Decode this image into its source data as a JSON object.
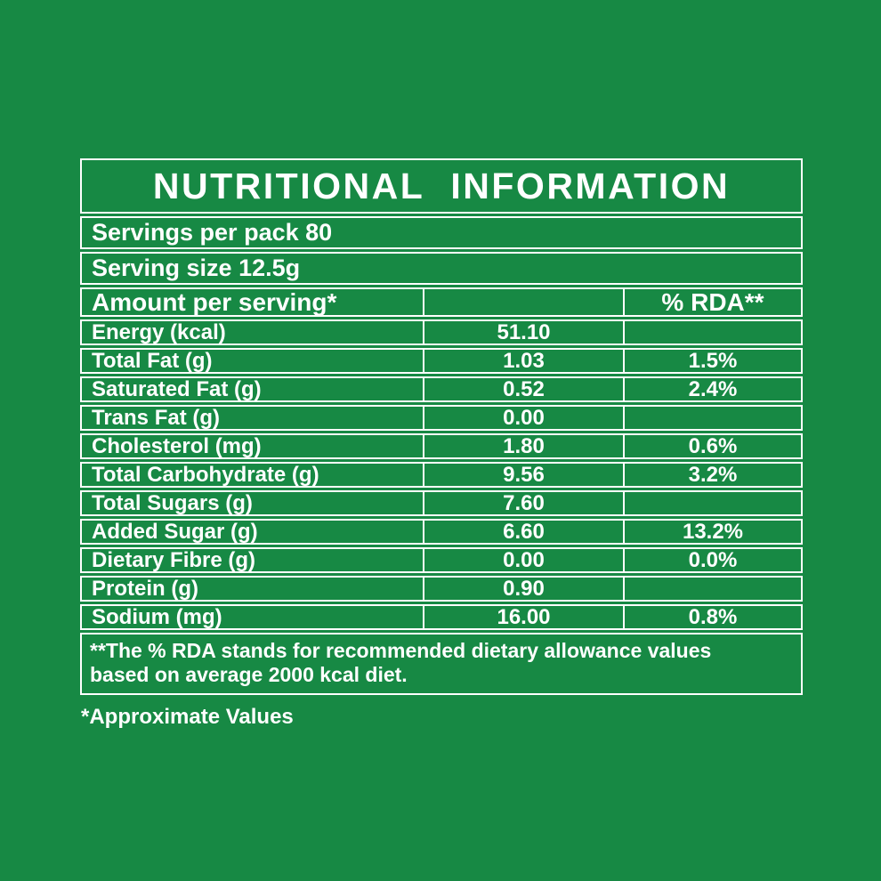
{
  "theme": {
    "background": "#178944",
    "border": "#FFFFFF",
    "text": "#FFFFFF"
  },
  "label": {
    "title": "NUTRITIONAL INFORMATION",
    "servings_per_pack": "Servings per pack 80",
    "serving_size": "Serving size 12.5g",
    "table": {
      "header": {
        "amount_col": "Amount per serving*",
        "value_col": "",
        "rda_col": "% RDA**"
      },
      "rows": [
        {
          "name": "Energy (kcal)",
          "value": "51.10",
          "rda": ""
        },
        {
          "name": "Total Fat (g)",
          "value": "1.03",
          "rda": "1.5%"
        },
        {
          "name": "Saturated Fat (g)",
          "value": "0.52",
          "rda": "2.4%"
        },
        {
          "name": "Trans Fat (g)",
          "value": "0.00",
          "rda": ""
        },
        {
          "name": "Cholesterol (mg)",
          "value": "1.80",
          "rda": "0.6%"
        },
        {
          "name": "Total Carbohydrate (g)",
          "value": "9.56",
          "rda": "3.2%"
        },
        {
          "name": "Total Sugars (g)",
          "value": "7.60",
          "rda": ""
        },
        {
          "name": "Added  Sugar (g)",
          "value": "6.60",
          "rda": "13.2%"
        },
        {
          "name": "Dietary Fibre (g)",
          "value": "0.00",
          "rda": "0.0%"
        },
        {
          "name": "Protein (g)",
          "value": "0.90",
          "rda": ""
        },
        {
          "name": "Sodium (mg)",
          "value": "16.00",
          "rda": "0.8%"
        }
      ]
    },
    "footnote_line1": "**The % RDA stands for recommended dietary allowance values",
    "footnote_line2": "based on average 2000 kcal diet.",
    "approximate_note": "*Approximate Values"
  }
}
